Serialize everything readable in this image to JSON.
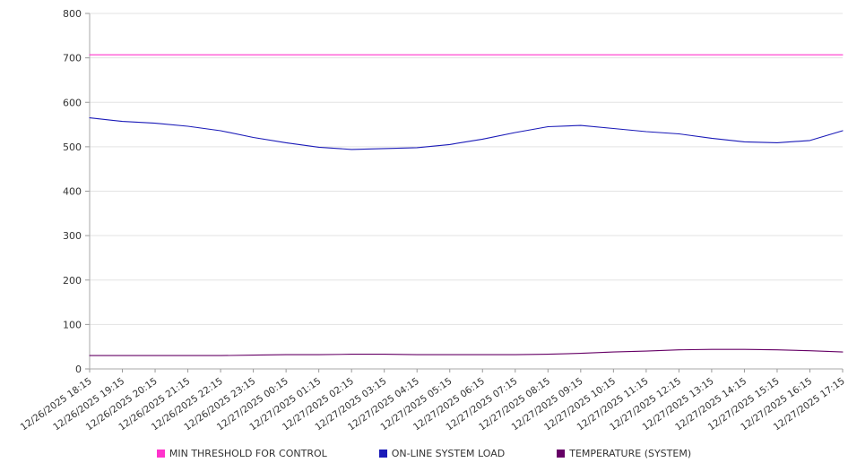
{
  "chart_data": {
    "type": "line",
    "title": "",
    "xlabel": "",
    "ylabel": "",
    "ylim": [
      0,
      800
    ],
    "ytick_step": 100,
    "grid": true,
    "legend_position": "bottom",
    "categories": [
      "12/26/2025 18:15",
      "12/26/2025 19:15",
      "12/26/2025 20:15",
      "12/26/2025 21:15",
      "12/26/2025 22:15",
      "12/26/2025 23:15",
      "12/27/2025 00:15",
      "12/27/2025 01:15",
      "12/27/2025 02:15",
      "12/27/2025 03:15",
      "12/27/2025 04:15",
      "12/27/2025 05:15",
      "12/27/2025 06:15",
      "12/27/2025 07:15",
      "12/27/2025 08:15",
      "12/27/2025 09:15",
      "12/27/2025 10:15",
      "12/27/2025 11:15",
      "12/27/2025 12:15",
      "12/27/2025 13:15",
      "12/27/2025 14:15",
      "12/27/2025 15:15",
      "12/27/2025 16:15",
      "12/27/2025 17:15"
    ],
    "series": [
      {
        "name": "MIN THRESHOLD FOR CONTROL",
        "color": "#ff33cc",
        "values": [
          707,
          707,
          707,
          707,
          707,
          707,
          707,
          707,
          707,
          707,
          707,
          707,
          707,
          707,
          707,
          707,
          707,
          707,
          707,
          707,
          707,
          707,
          707,
          707
        ]
      },
      {
        "name": "ON-LINE SYSTEM LOAD",
        "color": "#1a1ab8",
        "values": [
          565,
          557,
          553,
          546,
          536,
          521,
          509,
          499,
          494,
          496,
          498,
          505,
          517,
          532,
          545,
          548,
          541,
          534,
          529,
          519,
          511,
          509,
          514,
          536
        ]
      },
      {
        "name": "TEMPERATURE (SYSTEM)",
        "color": "#660066",
        "values": [
          30,
          30,
          30,
          30,
          30,
          31,
          32,
          32,
          33,
          33,
          32,
          32,
          32,
          32,
          33,
          35,
          38,
          40,
          43,
          44,
          44,
          43,
          41,
          38
        ]
      }
    ]
  }
}
